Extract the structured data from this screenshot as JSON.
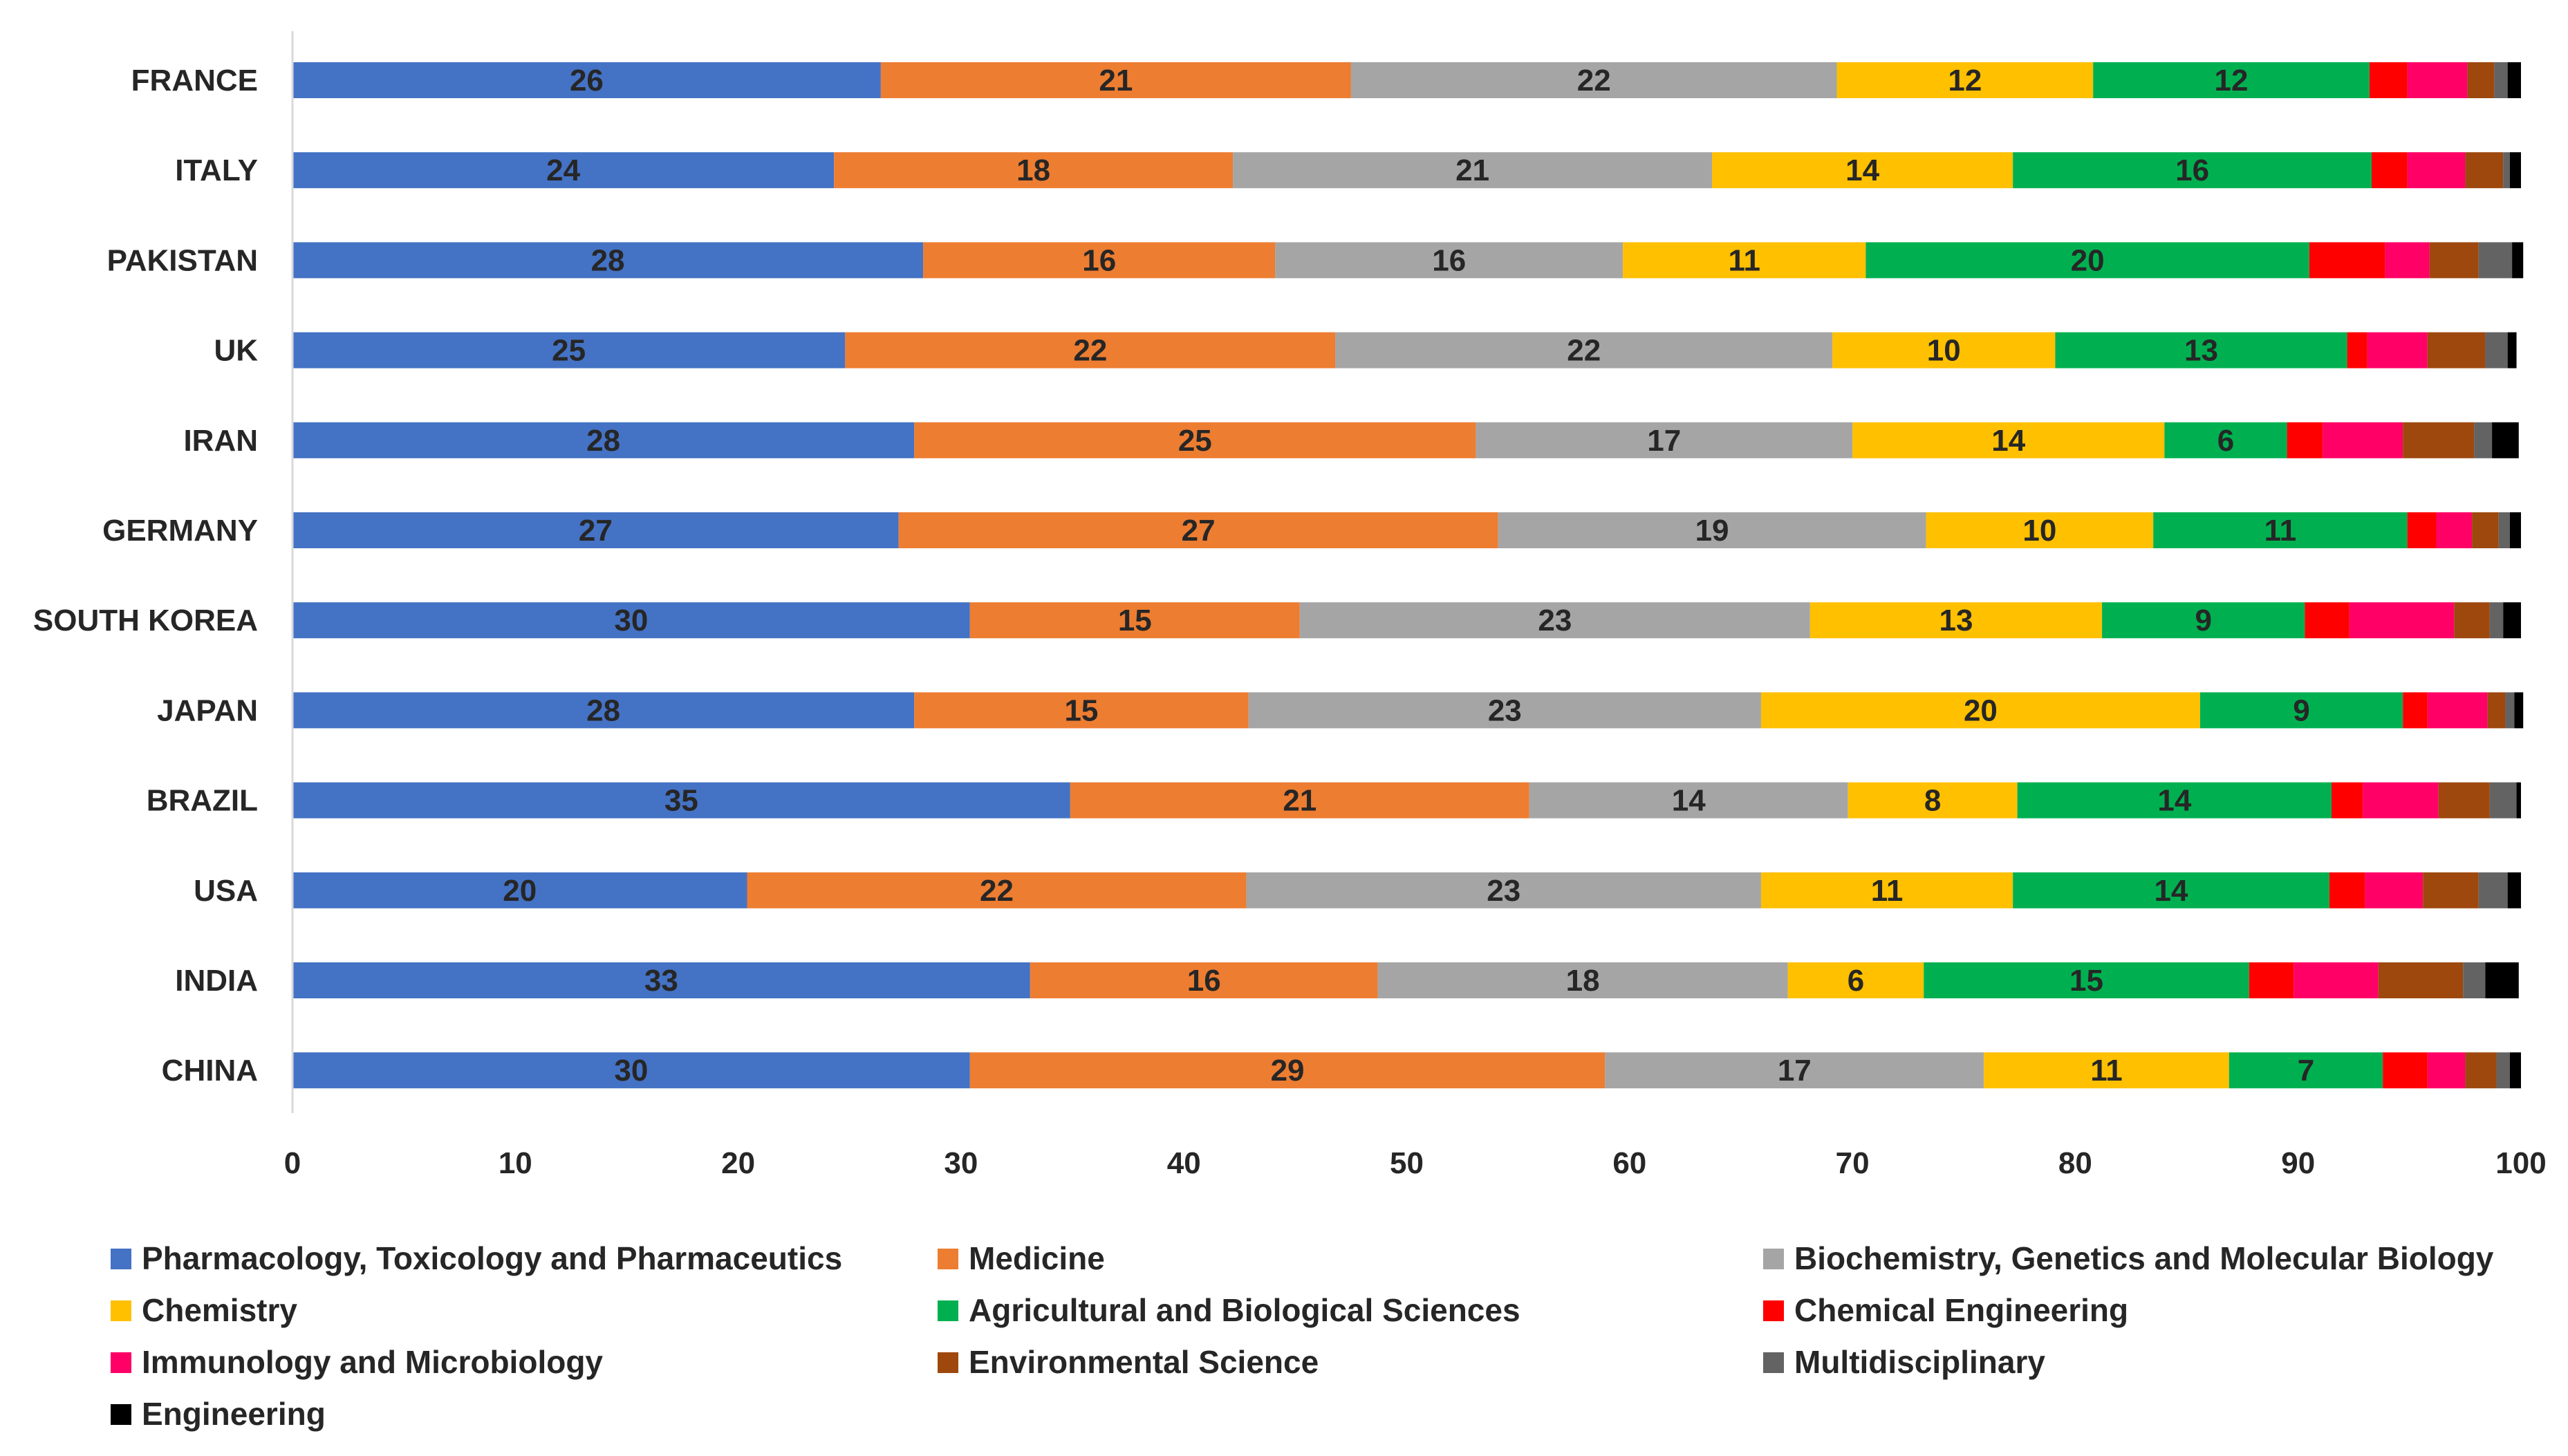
{
  "chart_data": {
    "type": "bar",
    "orientation": "horizontal",
    "stacked": true,
    "title": "",
    "xlabel": "",
    "ylabel": "",
    "xlim": [
      0,
      100
    ],
    "xticks": [
      0,
      10,
      20,
      30,
      40,
      50,
      60,
      70,
      80,
      90,
      100
    ],
    "categories": [
      "FRANCE",
      "ITALY",
      "PAKISTAN",
      "UK",
      "IRAN",
      "GERMANY",
      "SOUTH KOREA",
      "JAPAN",
      "BRAZIL",
      "USA",
      "INDIA",
      "CHINA"
    ],
    "legend_position": "bottom",
    "series": [
      {
        "name": "Pharmacology, Toxicology and Pharmaceutics",
        "color": "#4472C4",
        "values": [
          26.4,
          24.3,
          28.3,
          24.8,
          27.9,
          27.2,
          30.4,
          27.9,
          34.9,
          20.4,
          33.1,
          30.4
        ],
        "labels": [
          "26",
          "24",
          "28",
          "25",
          "28",
          "27",
          "30",
          "28",
          "35",
          "20",
          "33",
          "30"
        ]
      },
      {
        "name": "Medicine",
        "color": "#ED7D31",
        "values": [
          21.1,
          17.9,
          15.8,
          22.0,
          25.2,
          26.9,
          14.8,
          15.0,
          20.6,
          22.4,
          15.6,
          28.5
        ],
        "labels": [
          "21",
          "18",
          "16",
          "22",
          "25",
          "27",
          "15",
          "15",
          "21",
          "22",
          "16",
          "29"
        ]
      },
      {
        "name": "Biochemistry, Genetics and Molecular Biology",
        "color": "#A5A5A5",
        "values": [
          21.8,
          21.5,
          15.6,
          22.3,
          16.9,
          19.2,
          22.9,
          23.0,
          14.3,
          23.1,
          18.4,
          17.0
        ],
        "labels": [
          "22",
          "21",
          "16",
          "22",
          "17",
          "19",
          "23",
          "23",
          "14",
          "23",
          "18",
          "17"
        ]
      },
      {
        "name": "Chemistry",
        "color": "#FFC000",
        "values": [
          11.5,
          13.5,
          10.9,
          10.0,
          14.0,
          10.2,
          13.1,
          19.7,
          7.6,
          11.3,
          6.1,
          11.0
        ],
        "labels": [
          "12",
          "14",
          "11",
          "10",
          "14",
          "10",
          "13",
          "20",
          "8",
          "11",
          "6",
          "11"
        ]
      },
      {
        "name": "Agricultural and Biological Sciences",
        "color": "#00B050",
        "values": [
          12.4,
          16.1,
          19.9,
          13.1,
          5.5,
          11.4,
          9.1,
          9.1,
          14.1,
          14.2,
          14.6,
          6.9
        ],
        "labels": [
          "12",
          "16",
          "20",
          "13",
          "6",
          "11",
          "9",
          "9",
          "14",
          "14",
          "15",
          "7"
        ]
      },
      {
        "name": "Chemical Engineering",
        "color": "#FF0000",
        "values": [
          1.7,
          1.6,
          3.4,
          0.9,
          1.6,
          1.3,
          2.0,
          1.1,
          1.4,
          1.6,
          2.0,
          2.0
        ],
        "labels": []
      },
      {
        "name": "Immunology and Microbiology",
        "color": "#FF0066",
        "values": [
          2.7,
          2.6,
          2.0,
          2.7,
          3.6,
          1.6,
          4.7,
          2.7,
          3.4,
          2.6,
          3.8,
          1.7
        ],
        "labels": []
      },
      {
        "name": "Environmental Science",
        "color": "#9E480E",
        "values": [
          1.2,
          1.7,
          2.2,
          2.6,
          3.2,
          1.2,
          1.6,
          0.8,
          2.3,
          2.5,
          3.8,
          1.4
        ],
        "labels": []
      },
      {
        "name": "Multidisciplinary",
        "color": "#636363",
        "values": [
          0.6,
          0.3,
          1.5,
          1.0,
          0.8,
          0.5,
          0.6,
          0.4,
          1.2,
          1.3,
          1.0,
          0.6
        ],
        "labels": []
      },
      {
        "name": "Engineering",
        "color": "#000000",
        "values": [
          0.6,
          0.5,
          0.5,
          0.4,
          1.2,
          0.5,
          0.8,
          0.4,
          0.2,
          0.6,
          1.5,
          0.5
        ],
        "labels": []
      }
    ]
  }
}
